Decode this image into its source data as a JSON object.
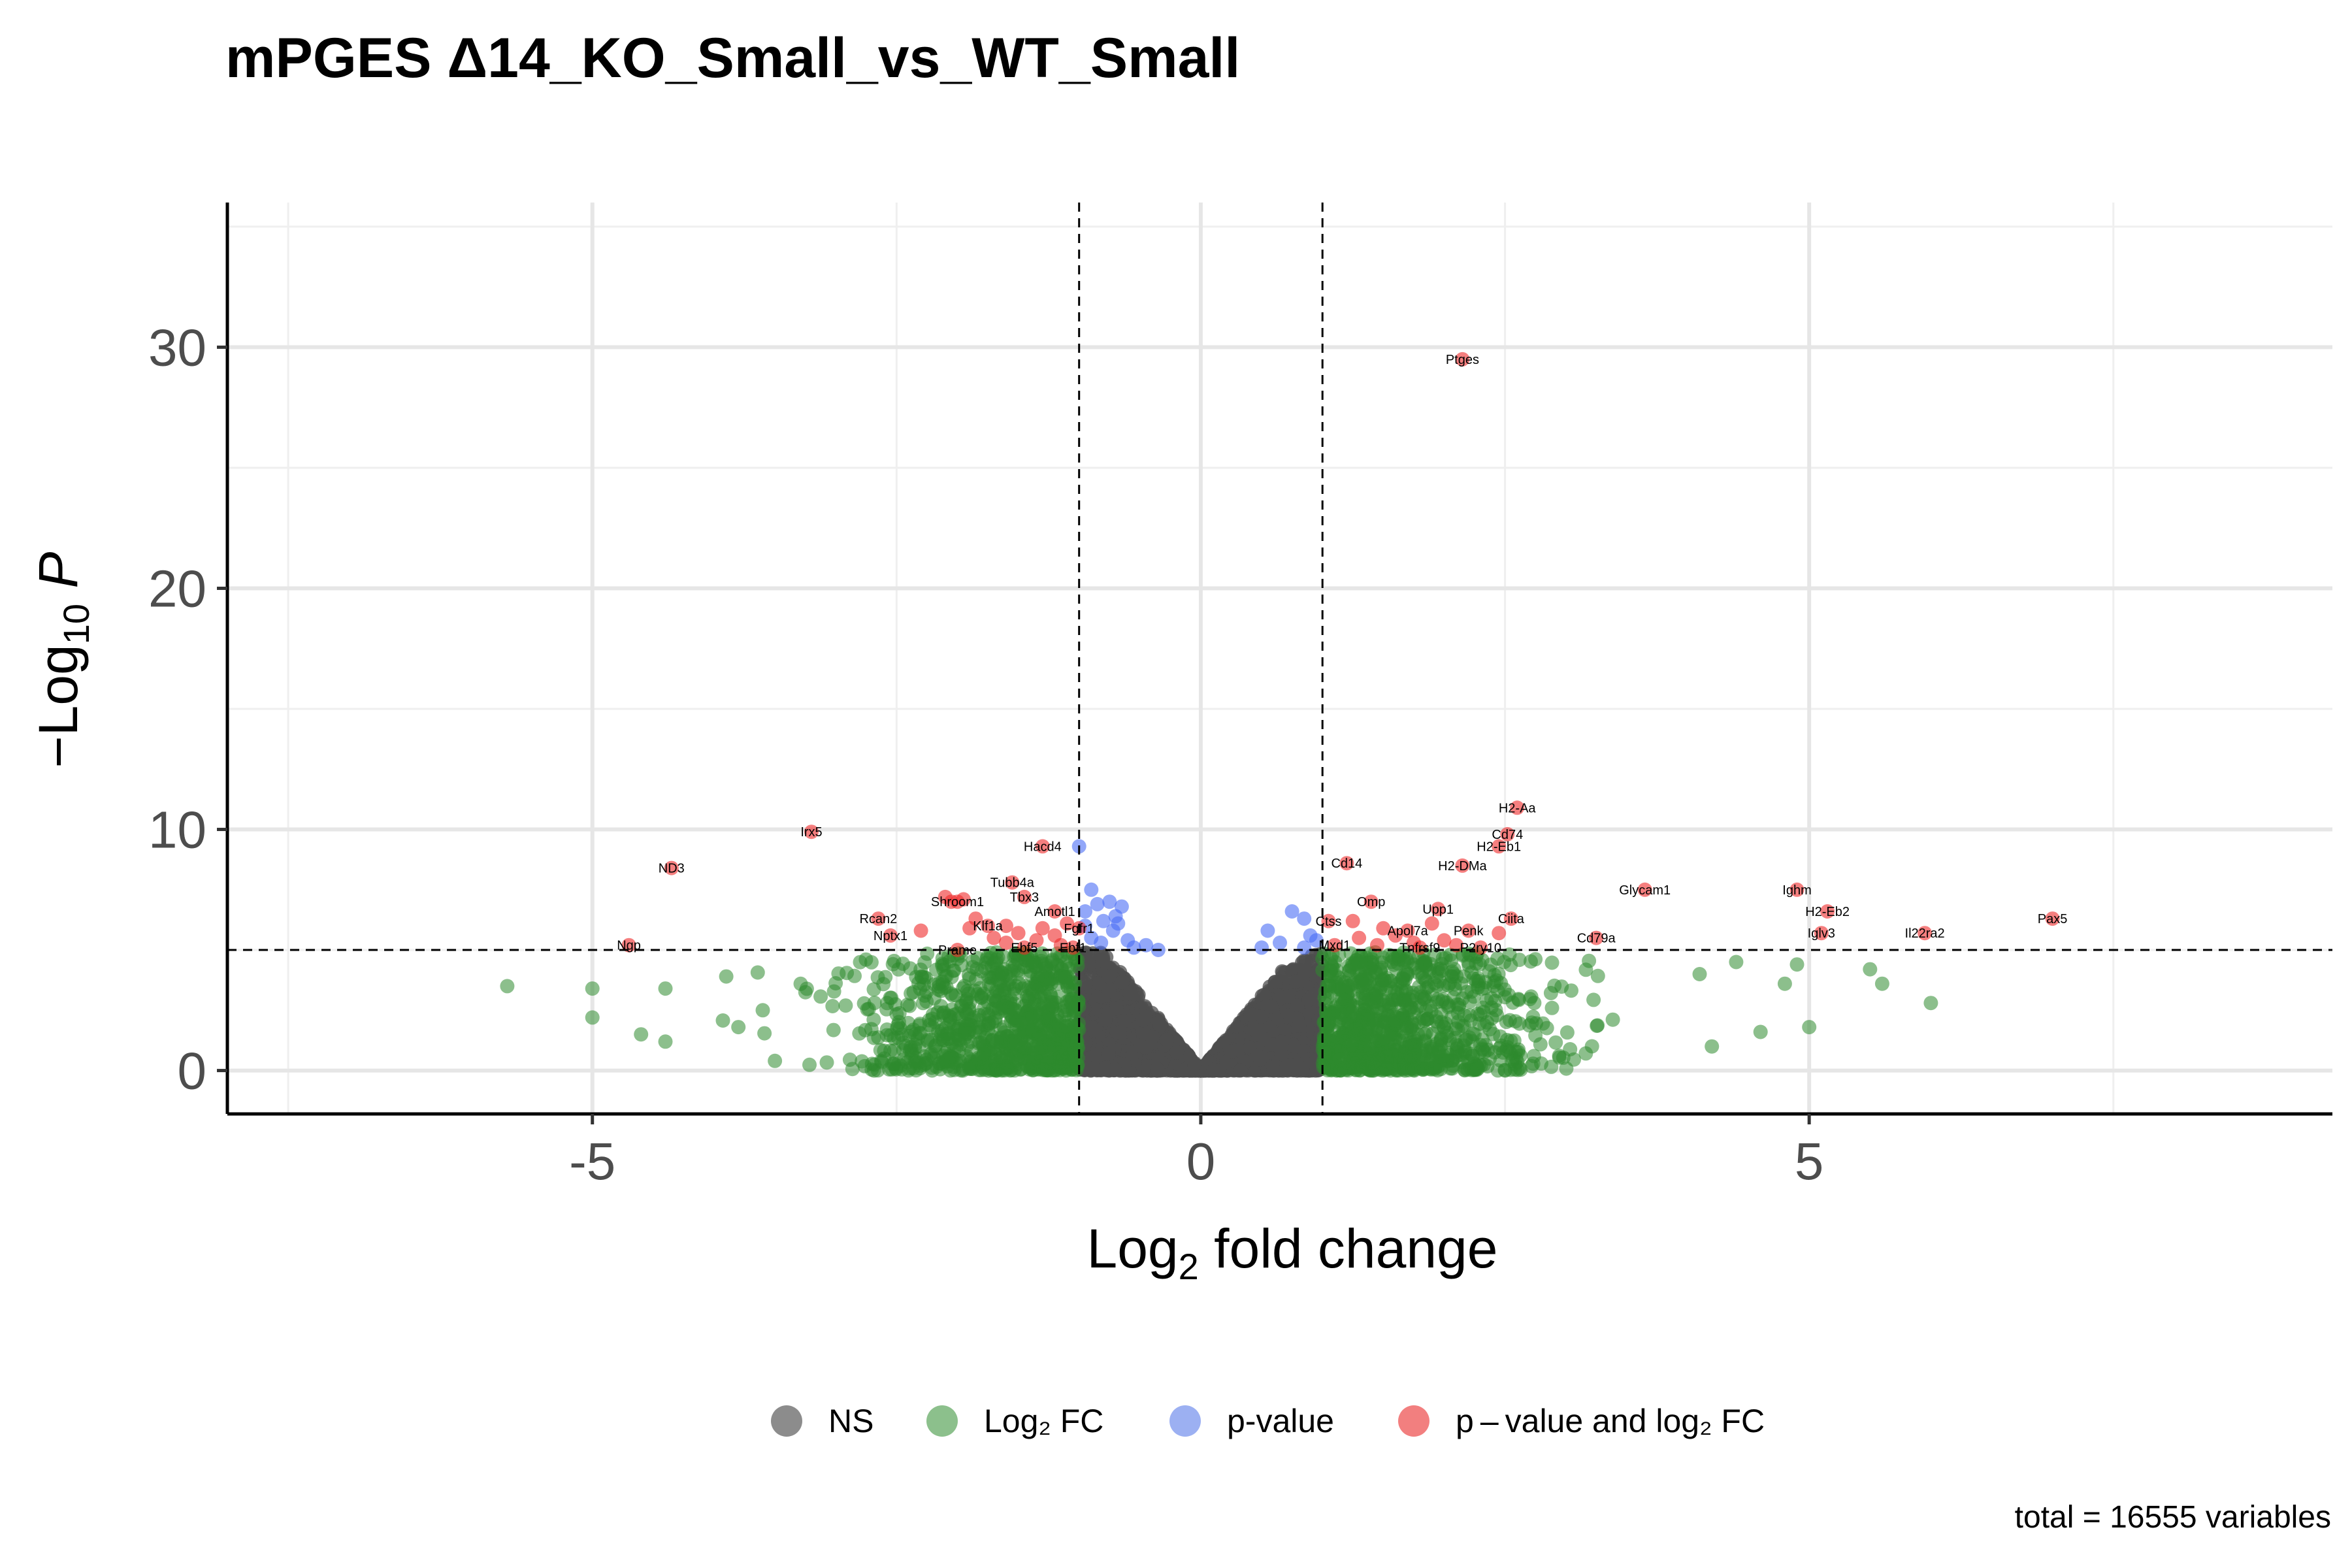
{
  "chart_data": {
    "type": "scatter",
    "title": "mPGES Δ14_KO_Small_vs_WT_Small",
    "xlabel": "Log₂ fold change",
    "ylabel": "−Log₁₀ P",
    "xlim": [
      -8,
      9.3
    ],
    "ylim": [
      -1.8,
      36
    ],
    "x_ticks": [
      -5,
      0,
      5
    ],
    "y_ticks": [
      0,
      10,
      20,
      30
    ],
    "grid": true,
    "thresholds": {
      "log2fc": [
        -1,
        1
      ],
      "neglog10p": 5
    },
    "caption": "total = 16555 variables",
    "legend_position": "bottom",
    "legend": [
      {
        "key": "ns",
        "label": "NS",
        "color": "#808080"
      },
      {
        "key": "fc",
        "label": "Log₂ FC",
        "color": "#3a9a3a"
      },
      {
        "key": "p",
        "label": "p-value",
        "color": "#6b8cf0"
      },
      {
        "key": "both",
        "label": "p – value and log₂ FC",
        "color": "#ee3a3a"
      }
    ],
    "series_colors": {
      "ns": "#4d4d4d",
      "fc": "#2e8b2e",
      "p": "#4a6cf5",
      "both": "#ee2a2a"
    },
    "labeled_points": [
      {
        "label": "Ptges",
        "x": 2.15,
        "y": 29.5
      },
      {
        "label": "H2-Aa",
        "x": 2.6,
        "y": 10.9
      },
      {
        "label": "Cd74",
        "x": 2.52,
        "y": 9.8
      },
      {
        "label": "H2-Eb1",
        "x": 2.45,
        "y": 9.3
      },
      {
        "label": "H2-DMa",
        "x": 2.15,
        "y": 8.5
      },
      {
        "label": "Cd14",
        "x": 1.2,
        "y": 8.6
      },
      {
        "label": "Glycam1",
        "x": 3.65,
        "y": 7.5
      },
      {
        "label": "Ighm",
        "x": 4.9,
        "y": 7.5
      },
      {
        "label": "H2-Eb2",
        "x": 5.15,
        "y": 6.6
      },
      {
        "label": "Pax5",
        "x": 7.0,
        "y": 6.3
      },
      {
        "label": "Iglv3",
        "x": 5.1,
        "y": 5.7
      },
      {
        "label": "Il22ra2",
        "x": 5.95,
        "y": 5.7
      },
      {
        "label": "Omp",
        "x": 1.4,
        "y": 7.0
      },
      {
        "label": "Upp1",
        "x": 1.95,
        "y": 6.7
      },
      {
        "label": "Ctss",
        "x": 1.05,
        "y": 6.2
      },
      {
        "label": "Ciita",
        "x": 2.55,
        "y": 6.3
      },
      {
        "label": "Penk",
        "x": 2.2,
        "y": 5.8
      },
      {
        "label": "Apol7a",
        "x": 1.7,
        "y": 5.8
      },
      {
        "label": "Cd79a",
        "x": 3.25,
        "y": 5.5
      },
      {
        "label": "Mxd1",
        "x": 1.1,
        "y": 5.2
      },
      {
        "label": "Tnfrsf9",
        "x": 1.8,
        "y": 5.1
      },
      {
        "label": "P2ry10",
        "x": 2.3,
        "y": 5.1
      },
      {
        "label": "Irx5",
        "x": -3.2,
        "y": 9.9
      },
      {
        "label": "ND3",
        "x": -4.35,
        "y": 8.4
      },
      {
        "label": "Ngp",
        "x": -4.7,
        "y": 5.2
      },
      {
        "label": "Hacd4",
        "x": -1.3,
        "y": 9.3
      },
      {
        "label": "Tubb4a",
        "x": -1.55,
        "y": 7.8
      },
      {
        "label": "Tbx3",
        "x": -1.45,
        "y": 7.2
      },
      {
        "label": "Shroom1",
        "x": -2.0,
        "y": 7.0
      },
      {
        "label": "Rcan2",
        "x": -2.65,
        "y": 6.3
      },
      {
        "label": "Amotl1",
        "x": -1.2,
        "y": 6.6
      },
      {
        "label": "Klf1a",
        "x": -1.75,
        "y": 6.0
      },
      {
        "label": "Nptx1",
        "x": -2.55,
        "y": 5.6
      },
      {
        "label": "Fgfr1",
        "x": -1.0,
        "y": 5.9
      },
      {
        "label": "Prame",
        "x": -2.0,
        "y": 5.0
      },
      {
        "label": "Ebf5",
        "x": -1.45,
        "y": 5.1
      },
      {
        "label": "Ebf1",
        "x": -1.05,
        "y": 5.1
      }
    ]
  }
}
